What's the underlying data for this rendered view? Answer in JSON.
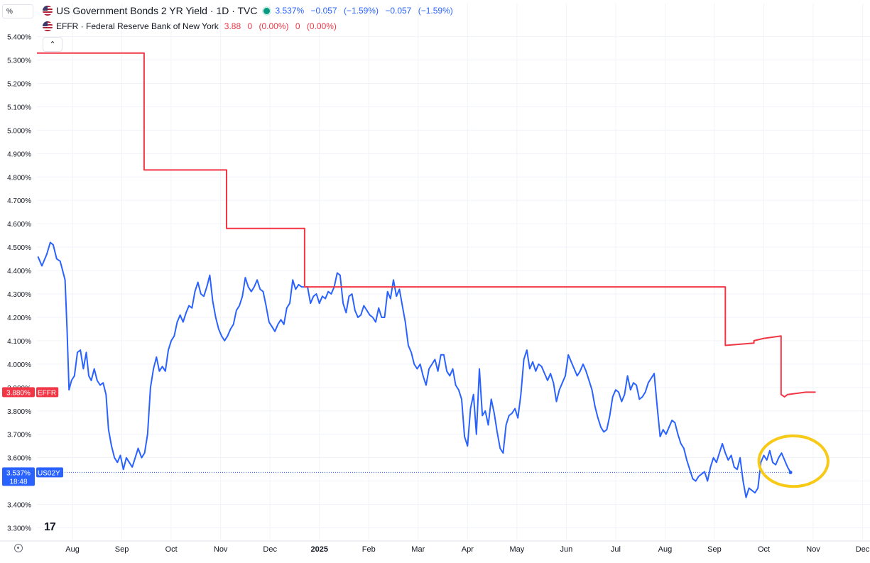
{
  "unit_label": "%",
  "legend": {
    "us02y": {
      "title": "US Government Bonds 2 YR Yield · 1D · TVC",
      "last": "3.537%",
      "change": "−0.057",
      "change_pct": "(−1.59%)",
      "change2": "−0.057",
      "change2_pct": "(−1.59%)",
      "color": "#2962ff"
    },
    "effr": {
      "title": "EFFR · Federal Reserve Bank of New York",
      "last": "3.88",
      "change": "0",
      "change_pct": "(0.00%)",
      "change2": "0",
      "change2_pct": "(0.00%)",
      "color": "#f23645"
    }
  },
  "collapse_glyph": "⌃",
  "logo_text": "17",
  "chart_data": {
    "type": "line",
    "y_ticks": [
      "5.400%",
      "5.300%",
      "5.200%",
      "5.100%",
      "5.000%",
      "4.900%",
      "4.800%",
      "4.700%",
      "4.600%",
      "4.500%",
      "4.400%",
      "4.300%",
      "4.200%",
      "4.100%",
      "4.000%",
      "3.900%",
      "3.800%",
      "3.700%",
      "3.600%",
      "3.500%",
      "3.400%",
      "3.300%"
    ],
    "ylim": [
      3.25,
      5.42
    ],
    "x_ticks": [
      {
        "label": "Aug",
        "m": 1.0
      },
      {
        "label": "Sep",
        "m": 2.0
      },
      {
        "label": "Oct",
        "m": 3.0
      },
      {
        "label": "Nov",
        "m": 4.0
      },
      {
        "label": "Dec",
        "m": 5.0
      },
      {
        "label": "2025",
        "m": 6.0,
        "bold": true
      },
      {
        "label": "Feb",
        "m": 7.0
      },
      {
        "label": "Mar",
        "m": 8.0
      },
      {
        "label": "Apr",
        "m": 9.0
      },
      {
        "label": "May",
        "m": 10.0
      },
      {
        "label": "Jun",
        "m": 11.0
      },
      {
        "label": "Jul",
        "m": 12.0
      },
      {
        "label": "Aug",
        "m": 13.0
      },
      {
        "label": "Sep",
        "m": 14.0
      },
      {
        "label": "Oct",
        "m": 15.0
      },
      {
        "label": "Nov",
        "m": 16.0
      },
      {
        "label": "Dec",
        "m": 17.0
      }
    ],
    "xlim": [
      0.28,
      17.15
    ],
    "series": [
      {
        "name": "US02Y",
        "color": "#2962ff",
        "step": false,
        "points": [
          [
            0.3,
            4.46
          ],
          [
            0.38,
            4.42
          ],
          [
            0.48,
            4.47
          ],
          [
            0.55,
            4.52
          ],
          [
            0.61,
            4.51
          ],
          [
            0.68,
            4.45
          ],
          [
            0.75,
            4.44
          ],
          [
            0.8,
            4.4
          ],
          [
            0.85,
            4.36
          ],
          [
            0.89,
            4.15
          ],
          [
            0.93,
            3.89
          ],
          [
            0.98,
            3.93
          ],
          [
            1.04,
            3.95
          ],
          [
            1.1,
            4.05
          ],
          [
            1.16,
            4.06
          ],
          [
            1.22,
            3.98
          ],
          [
            1.28,
            4.05
          ],
          [
            1.33,
            3.95
          ],
          [
            1.38,
            3.93
          ],
          [
            1.44,
            3.98
          ],
          [
            1.5,
            3.93
          ],
          [
            1.56,
            3.91
          ],
          [
            1.62,
            3.92
          ],
          [
            1.68,
            3.87
          ],
          [
            1.73,
            3.72
          ],
          [
            1.79,
            3.65
          ],
          [
            1.85,
            3.6
          ],
          [
            1.91,
            3.58
          ],
          [
            1.97,
            3.61
          ],
          [
            2.03,
            3.55
          ],
          [
            2.09,
            3.6
          ],
          [
            2.15,
            3.58
          ],
          [
            2.21,
            3.56
          ],
          [
            2.27,
            3.6
          ],
          [
            2.33,
            3.64
          ],
          [
            2.4,
            3.6
          ],
          [
            2.46,
            3.62
          ],
          [
            2.52,
            3.7
          ],
          [
            2.58,
            3.9
          ],
          [
            2.64,
            3.98
          ],
          [
            2.7,
            4.03
          ],
          [
            2.76,
            3.97
          ],
          [
            2.82,
            3.99
          ],
          [
            2.88,
            3.97
          ],
          [
            2.94,
            4.06
          ],
          [
            3.0,
            4.1
          ],
          [
            3.06,
            4.12
          ],
          [
            3.12,
            4.18
          ],
          [
            3.18,
            4.21
          ],
          [
            3.24,
            4.18
          ],
          [
            3.3,
            4.22
          ],
          [
            3.36,
            4.25
          ],
          [
            3.42,
            4.24
          ],
          [
            3.48,
            4.31
          ],
          [
            3.54,
            4.35
          ],
          [
            3.6,
            4.3
          ],
          [
            3.66,
            4.29
          ],
          [
            3.72,
            4.33
          ],
          [
            3.78,
            4.38
          ],
          [
            3.84,
            4.27
          ],
          [
            3.9,
            4.2
          ],
          [
            3.96,
            4.15
          ],
          [
            4.02,
            4.12
          ],
          [
            4.08,
            4.1
          ],
          [
            4.14,
            4.12
          ],
          [
            4.2,
            4.15
          ],
          [
            4.26,
            4.17
          ],
          [
            4.32,
            4.23
          ],
          [
            4.38,
            4.25
          ],
          [
            4.44,
            4.29
          ],
          [
            4.5,
            4.37
          ],
          [
            4.56,
            4.33
          ],
          [
            4.62,
            4.31
          ],
          [
            4.68,
            4.33
          ],
          [
            4.74,
            4.36
          ],
          [
            4.8,
            4.32
          ],
          [
            4.86,
            4.31
          ],
          [
            4.92,
            4.25
          ],
          [
            4.98,
            4.18
          ],
          [
            5.04,
            4.16
          ],
          [
            5.1,
            4.14
          ],
          [
            5.16,
            4.17
          ],
          [
            5.22,
            4.19
          ],
          [
            5.28,
            4.17
          ],
          [
            5.34,
            4.24
          ],
          [
            5.4,
            4.26
          ],
          [
            5.46,
            4.36
          ],
          [
            5.52,
            4.32
          ],
          [
            5.58,
            4.34
          ],
          [
            5.64,
            4.33
          ],
          [
            5.7,
            4.33
          ],
          [
            5.76,
            4.33
          ],
          [
            5.82,
            4.26
          ],
          [
            5.88,
            4.29
          ],
          [
            5.94,
            4.3
          ],
          [
            6.0,
            4.26
          ],
          [
            6.06,
            4.29
          ],
          [
            6.12,
            4.28
          ],
          [
            6.18,
            4.31
          ],
          [
            6.24,
            4.3
          ],
          [
            6.3,
            4.33
          ],
          [
            6.36,
            4.39
          ],
          [
            6.42,
            4.38
          ],
          [
            6.48,
            4.26
          ],
          [
            6.54,
            4.22
          ],
          [
            6.6,
            4.29
          ],
          [
            6.66,
            4.3
          ],
          [
            6.72,
            4.23
          ],
          [
            6.78,
            4.2
          ],
          [
            6.84,
            4.21
          ],
          [
            6.9,
            4.25
          ],
          [
            6.96,
            4.23
          ],
          [
            7.02,
            4.21
          ],
          [
            7.08,
            4.2
          ],
          [
            7.14,
            4.18
          ],
          [
            7.2,
            4.24
          ],
          [
            7.26,
            4.2
          ],
          [
            7.32,
            4.2
          ],
          [
            7.38,
            4.31
          ],
          [
            7.44,
            4.28
          ],
          [
            7.5,
            4.36
          ],
          [
            7.56,
            4.29
          ],
          [
            7.62,
            4.32
          ],
          [
            7.68,
            4.25
          ],
          [
            7.74,
            4.18
          ],
          [
            7.8,
            4.08
          ],
          [
            7.86,
            4.05
          ],
          [
            7.92,
            4.0
          ],
          [
            7.98,
            3.98
          ],
          [
            8.04,
            4.0
          ],
          [
            8.1,
            3.95
          ],
          [
            8.16,
            3.91
          ],
          [
            8.22,
            3.98
          ],
          [
            8.28,
            4.0
          ],
          [
            8.34,
            4.02
          ],
          [
            8.4,
            3.97
          ],
          [
            8.46,
            4.04
          ],
          [
            8.52,
            4.04
          ],
          [
            8.58,
            3.97
          ],
          [
            8.64,
            3.95
          ],
          [
            8.7,
            3.98
          ],
          [
            8.76,
            3.91
          ],
          [
            8.82,
            3.89
          ],
          [
            8.88,
            3.85
          ],
          [
            8.94,
            3.69
          ],
          [
            9.0,
            3.65
          ],
          [
            9.06,
            3.81
          ],
          [
            9.12,
            3.87
          ],
          [
            9.18,
            3.7
          ],
          [
            9.24,
            3.98
          ],
          [
            9.3,
            3.78
          ],
          [
            9.36,
            3.8
          ],
          [
            9.42,
            3.74
          ],
          [
            9.48,
            3.85
          ],
          [
            9.54,
            3.79
          ],
          [
            9.6,
            3.71
          ],
          [
            9.66,
            3.64
          ],
          [
            9.72,
            3.62
          ],
          [
            9.78,
            3.74
          ],
          [
            9.84,
            3.78
          ],
          [
            9.9,
            3.79
          ],
          [
            9.96,
            3.81
          ],
          [
            10.02,
            3.77
          ],
          [
            10.08,
            3.87
          ],
          [
            10.14,
            4.02
          ],
          [
            10.2,
            4.06
          ],
          [
            10.26,
            3.98
          ],
          [
            10.32,
            4.01
          ],
          [
            10.38,
            3.97
          ],
          [
            10.44,
            4.0
          ],
          [
            10.5,
            3.99
          ],
          [
            10.56,
            3.96
          ],
          [
            10.62,
            3.93
          ],
          [
            10.68,
            3.96
          ],
          [
            10.74,
            3.92
          ],
          [
            10.8,
            3.84
          ],
          [
            10.86,
            3.89
          ],
          [
            10.92,
            3.92
          ],
          [
            10.98,
            3.95
          ],
          [
            11.04,
            4.04
          ],
          [
            11.1,
            4.01
          ],
          [
            11.16,
            3.98
          ],
          [
            11.22,
            3.95
          ],
          [
            11.28,
            3.97
          ],
          [
            11.34,
            4.0
          ],
          [
            11.4,
            3.97
          ],
          [
            11.46,
            3.93
          ],
          [
            11.52,
            3.89
          ],
          [
            11.58,
            3.82
          ],
          [
            11.64,
            3.77
          ],
          [
            11.7,
            3.73
          ],
          [
            11.76,
            3.71
          ],
          [
            11.82,
            3.72
          ],
          [
            11.88,
            3.78
          ],
          [
            11.94,
            3.86
          ],
          [
            12.0,
            3.89
          ],
          [
            12.06,
            3.88
          ],
          [
            12.12,
            3.84
          ],
          [
            12.18,
            3.87
          ],
          [
            12.24,
            3.95
          ],
          [
            12.3,
            3.89
          ],
          [
            12.36,
            3.92
          ],
          [
            12.42,
            3.91
          ],
          [
            12.48,
            3.85
          ],
          [
            12.54,
            3.86
          ],
          [
            12.6,
            3.88
          ],
          [
            12.66,
            3.92
          ],
          [
            12.72,
            3.94
          ],
          [
            12.78,
            3.96
          ],
          [
            12.84,
            3.82
          ],
          [
            12.9,
            3.69
          ],
          [
            12.96,
            3.72
          ],
          [
            13.02,
            3.7
          ],
          [
            13.08,
            3.73
          ],
          [
            13.14,
            3.76
          ],
          [
            13.2,
            3.75
          ],
          [
            13.26,
            3.7
          ],
          [
            13.32,
            3.66
          ],
          [
            13.38,
            3.64
          ],
          [
            13.44,
            3.59
          ],
          [
            13.5,
            3.55
          ],
          [
            13.56,
            3.51
          ],
          [
            13.62,
            3.5
          ],
          [
            13.68,
            3.52
          ],
          [
            13.74,
            3.53
          ],
          [
            13.8,
            3.54
          ],
          [
            13.86,
            3.5
          ],
          [
            13.92,
            3.56
          ],
          [
            13.98,
            3.6
          ],
          [
            14.04,
            3.58
          ],
          [
            14.1,
            3.62
          ],
          [
            14.16,
            3.66
          ],
          [
            14.22,
            3.62
          ],
          [
            14.28,
            3.59
          ],
          [
            14.34,
            3.61
          ],
          [
            14.4,
            3.56
          ],
          [
            14.46,
            3.55
          ],
          [
            14.52,
            3.6
          ],
          [
            14.58,
            3.5
          ],
          [
            14.64,
            3.43
          ],
          [
            14.7,
            3.47
          ],
          [
            14.76,
            3.46
          ],
          [
            14.82,
            3.45
          ],
          [
            14.88,
            3.47
          ],
          [
            14.94,
            3.58
          ],
          [
            15.0,
            3.61
          ],
          [
            15.06,
            3.59
          ],
          [
            15.12,
            3.63
          ],
          [
            15.18,
            3.58
          ],
          [
            15.24,
            3.57
          ],
          [
            15.3,
            3.6
          ],
          [
            15.36,
            3.62
          ],
          [
            15.42,
            3.59
          ],
          [
            15.48,
            3.56
          ],
          [
            15.54,
            3.537
          ]
        ]
      },
      {
        "name": "EFFR",
        "color": "#f23645",
        "step": true,
        "points": [
          [
            0.28,
            5.33
          ],
          [
            2.45,
            5.33
          ],
          [
            2.45,
            4.83
          ],
          [
            4.12,
            4.83
          ],
          [
            4.12,
            4.58
          ],
          [
            5.7,
            4.58
          ],
          [
            5.7,
            4.33
          ],
          [
            14.22,
            4.33
          ],
          [
            14.22,
            4.08
          ],
          [
            14.8,
            4.09
          ],
          [
            14.8,
            4.1
          ],
          [
            15.0,
            4.11
          ],
          [
            15.35,
            4.12
          ],
          [
            15.35,
            3.87
          ],
          [
            15.42,
            3.86
          ],
          [
            15.48,
            3.87
          ],
          [
            15.85,
            3.88
          ],
          [
            16.05,
            3.88
          ]
        ]
      }
    ],
    "price_labels": [
      {
        "name": "EFFR",
        "value_text": "3.880%",
        "tag": "EFFR",
        "y": 3.88,
        "color": "#f23645"
      },
      {
        "name": "US02Y",
        "value_text": "3.537%",
        "tag": "US02Y",
        "sub": "18:48",
        "y": 3.537,
        "color": "#2962ff"
      }
    ],
    "annotation": {
      "type": "ellipse",
      "cx": 15.6,
      "cy": 3.585,
      "rx_months": 0.7,
      "ry_value": 0.108,
      "color": "#f7ca18"
    }
  }
}
